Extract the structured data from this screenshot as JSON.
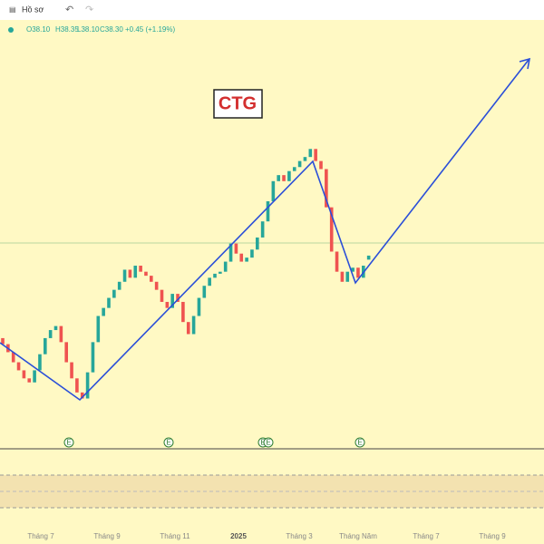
{
  "toolbar": {
    "profile": "Hồ sơ"
  },
  "legend": {
    "open": "O38.10",
    "high": "H38.35",
    "low": "L38.10",
    "close": "C38.30",
    "change": "+0.45 (+1.19%)"
  },
  "events": [
    "E",
    "E",
    "E",
    "E",
    "E"
  ],
  "chart_data": {
    "type": "candlestick",
    "title": "CTG",
    "open": [
      34.2,
      33.9,
      33.5,
      33.0,
      32.6,
      32.2,
      32.0,
      32.6,
      33.4,
      34.2,
      34.6,
      34.8,
      34.0,
      33.0,
      32.2,
      31.5,
      31.2,
      32.5,
      34.0,
      35.3,
      35.7,
      36.2,
      36.6,
      37.0,
      37.6,
      37.2,
      37.8,
      37.5,
      37.3,
      37.0,
      36.6,
      36.0,
      35.7,
      36.4,
      36.0,
      35.0,
      34.4,
      35.3,
      36.2,
      36.8,
      37.2,
      37.4,
      37.5,
      38.0,
      38.9,
      38.4,
      38.0,
      38.2,
      38.6,
      39.2,
      40.0,
      41.0,
      42.0,
      42.3,
      42.0,
      42.5,
      42.7,
      43.0,
      43.2,
      43.6,
      43.0,
      42.6,
      40.7,
      38.5,
      37.5,
      37.0,
      37.5,
      37.7,
      37.2,
      38.1
    ],
    "close": [
      33.9,
      33.5,
      33.0,
      32.6,
      32.2,
      32.0,
      32.6,
      33.4,
      34.2,
      34.6,
      34.8,
      34.0,
      33.0,
      32.2,
      31.5,
      31.2,
      32.5,
      34.0,
      35.3,
      35.7,
      36.2,
      36.6,
      37.0,
      37.6,
      37.2,
      37.8,
      37.5,
      37.3,
      37.0,
      36.6,
      36.0,
      35.7,
      36.4,
      36.0,
      35.0,
      34.4,
      35.3,
      36.2,
      36.8,
      37.2,
      37.4,
      37.5,
      38.0,
      38.9,
      38.4,
      38.0,
      38.2,
      38.6,
      39.2,
      40.0,
      41.0,
      42.0,
      42.3,
      42.0,
      42.5,
      42.7,
      43.0,
      43.2,
      43.6,
      43.0,
      42.6,
      40.7,
      38.5,
      37.5,
      37.0,
      37.5,
      37.7,
      37.2,
      37.8,
      38.3
    ],
    "ylim": [
      28.7,
      49.2
    ],
    "up_color": "#26a69a",
    "down_color": "#ef5350",
    "x_labels": [
      "Tháng 7",
      "Tháng 9",
      "Tháng 11",
      "2025",
      "Tháng 3",
      "Tháng Năm",
      "Tháng 7",
      "Tháng 9"
    ]
  }
}
